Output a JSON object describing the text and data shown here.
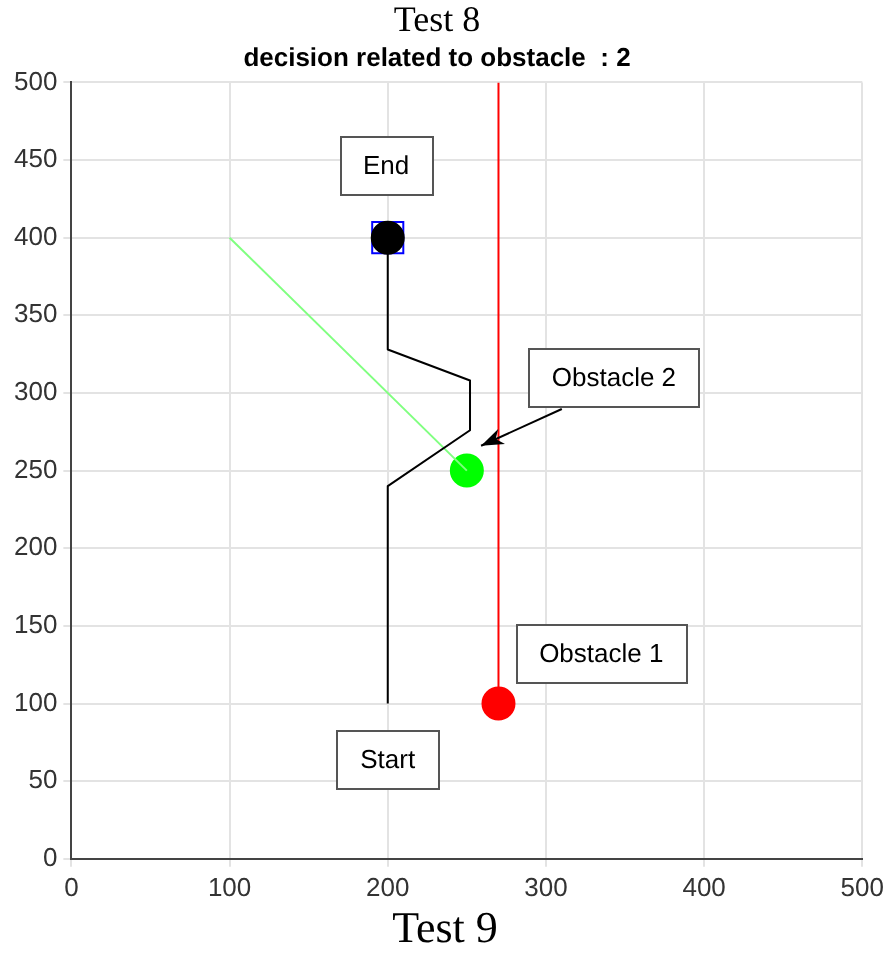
{
  "chart_data": {
    "type": "line",
    "title": "Test 8",
    "subtitle": "decision related to obstacle  : 2",
    "xlim": [
      0,
      500
    ],
    "xticks": [
      0,
      100,
      200,
      300,
      400,
      500
    ],
    "ylim": [
      0,
      500
    ],
    "yticks": [
      0,
      50,
      100,
      150,
      200,
      250,
      300,
      350,
      400,
      450,
      500
    ],
    "grid": true,
    "legend": false,
    "series": [
      {
        "marker": "none",
        "color": "#000000",
        "x": [
          200,
          200,
          252,
          252,
          200,
          200
        ],
        "values": [
          100,
          240,
          276,
          308,
          328,
          400
        ]
      },
      {
        "marker": "none",
        "color": "#80ff80",
        "x": [
          100,
          250
        ],
        "values": [
          400,
          250
        ]
      },
      {
        "marker": "none",
        "color": "#ff0000",
        "x": [
          270,
          270
        ],
        "values": [
          100,
          500
        ]
      },
      {
        "type": "scatter",
        "marker": "circle",
        "color": "#00ff00",
        "x": [
          250
        ],
        "values": [
          250
        ]
      },
      {
        "type": "scatter",
        "marker": "circle",
        "color": "#ff0000",
        "x": [
          270
        ],
        "values": [
          100
        ]
      },
      {
        "type": "scatter",
        "marker": "circle",
        "color": "#000000",
        "x": [
          200
        ],
        "values": [
          400
        ]
      },
      {
        "type": "scatter",
        "marker": "square",
        "color": "#0000ff",
        "x": [
          200
        ],
        "values": [
          400
        ]
      }
    ],
    "annotations": [
      "End",
      "Start",
      "Obstacle 1",
      "Obstacle 2",
      "Test 9"
    ]
  }
}
